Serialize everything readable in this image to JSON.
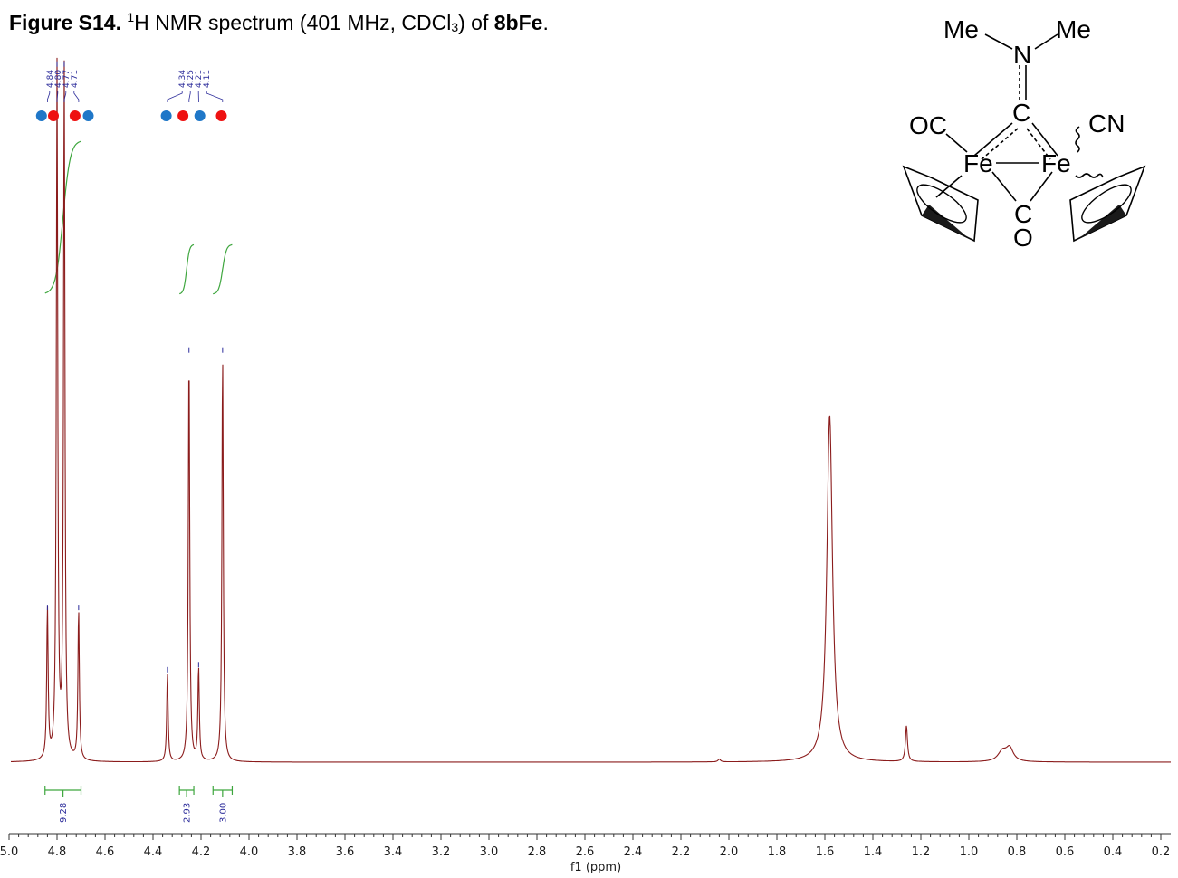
{
  "caption": {
    "label": "Figure S14.",
    "sup": "1",
    "text_a": "H NMR spectrum (401 MHz, CDCl",
    "sub": "3",
    "text_b": ") of ",
    "compound": "8bFe",
    "end": "."
  },
  "colors": {
    "spectrum": "#8b1c1c",
    "integral": "#3ea63e",
    "peak_label": "#2b2b9a",
    "marker_red": "#ee1111",
    "marker_blue": "#1f77c8"
  },
  "molecule": {
    "me_left": "Me",
    "me_right": "Me",
    "n": "N",
    "c_top": "C",
    "oc": "OC",
    "cn": "CN",
    "fe_left": "Fe",
    "fe_right": "Fe",
    "c_bottom": "C",
    "o_bottom": "O"
  },
  "chart_data": {
    "type": "line",
    "title": "",
    "xlabel": "f1 (ppm)",
    "ylabel": "",
    "xlim": [
      5.0,
      0.2
    ],
    "x_reversed": true,
    "x_ticks": [
      5.0,
      4.8,
      4.6,
      4.4,
      4.2,
      4.0,
      3.8,
      3.6,
      3.4,
      3.2,
      3.0,
      2.8,
      2.6,
      2.4,
      2.2,
      2.0,
      1.8,
      1.6,
      1.4,
      1.2,
      1.0,
      0.8,
      0.6,
      0.4,
      0.2
    ],
    "x_tick_labels": [
      "5.0",
      "4.8",
      "4.6",
      "4.4",
      "4.2",
      "4.0",
      "3.8",
      "3.6",
      "3.4",
      "3.2",
      "3.0",
      "2.8",
      "2.6",
      "2.4",
      "2.2",
      "2.0",
      "1.8",
      "1.6",
      "1.4",
      "1.2",
      "1.0",
      "0.8",
      "0.6",
      "0.4",
      "0.2"
    ],
    "grid": false,
    "peaks": [
      {
        "ppm": 4.84,
        "height": 0.21,
        "width": 0.0035
      },
      {
        "ppm": 4.8,
        "height": 0.97,
        "width": 0.0035
      },
      {
        "ppm": 4.77,
        "height": 0.97,
        "width": 0.0035
      },
      {
        "ppm": 4.71,
        "height": 0.21,
        "width": 0.0035
      },
      {
        "ppm": 4.34,
        "height": 0.123,
        "width": 0.0035
      },
      {
        "ppm": 4.25,
        "height": 0.57,
        "width": 0.0035
      },
      {
        "ppm": 4.21,
        "height": 0.13,
        "width": 0.0035
      },
      {
        "ppm": 4.11,
        "height": 0.57,
        "width": 0.0035
      },
      {
        "ppm": 1.58,
        "height": 0.485,
        "width": 0.014
      },
      {
        "ppm": 1.26,
        "height": 0.05,
        "width": 0.005
      },
      {
        "ppm": 0.86,
        "height": 0.014,
        "width": 0.022
      },
      {
        "ppm": 0.83,
        "height": 0.018,
        "width": 0.018
      },
      {
        "ppm": 2.04,
        "height": 0.004,
        "width": 0.006
      }
    ],
    "peak_labels": [
      {
        "ppm": 4.84,
        "text": "4.84"
      },
      {
        "ppm": 4.8,
        "text": "4.80"
      },
      {
        "ppm": 4.77,
        "text": "4.77"
      },
      {
        "ppm": 4.71,
        "text": "4.71"
      },
      {
        "ppm": 4.34,
        "text": "4.34"
      },
      {
        "ppm": 4.25,
        "text": "4.25"
      },
      {
        "ppm": 4.21,
        "text": "4.21"
      },
      {
        "ppm": 4.11,
        "text": "4.11"
      }
    ],
    "integrals": [
      {
        "from": 4.85,
        "to": 4.7,
        "value": "9.28"
      },
      {
        "from": 4.29,
        "to": 4.23,
        "value": "2.93"
      },
      {
        "from": 4.15,
        "to": 4.07,
        "value": "3.00"
      }
    ],
    "markers": [
      {
        "ppm": 4.865,
        "color": "blue"
      },
      {
        "ppm": 4.815,
        "color": "red"
      },
      {
        "ppm": 4.725,
        "color": "red"
      },
      {
        "ppm": 4.67,
        "color": "blue"
      },
      {
        "ppm": 4.345,
        "color": "blue"
      },
      {
        "ppm": 4.275,
        "color": "red"
      },
      {
        "ppm": 4.205,
        "color": "blue"
      },
      {
        "ppm": 4.115,
        "color": "red"
      }
    ]
  }
}
